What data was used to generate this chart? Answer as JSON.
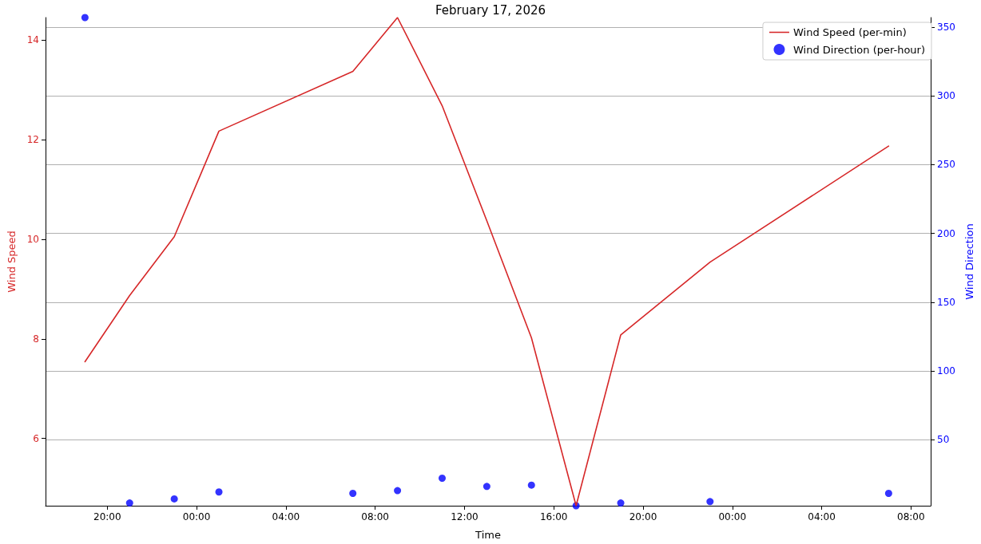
{
  "chart_data": {
    "type": "line",
    "title": "February 17, 2026",
    "xlabel": "Time",
    "ylabel": "Wind Speed",
    "y2label": "Wind Direction",
    "xlim": [
      "2026-02-16T17:14",
      "2026-02-18T08:53"
    ],
    "xticks": [
      {
        "value": "2026-02-16T20:00",
        "label": "20:00"
      },
      {
        "value": "2026-02-17T00:00",
        "label": "00:00"
      },
      {
        "value": "2026-02-17T04:00",
        "label": "04:00"
      },
      {
        "value": "2026-02-17T08:00",
        "label": "08:00"
      },
      {
        "value": "2026-02-17T12:00",
        "label": "12:00"
      },
      {
        "value": "2026-02-17T16:00",
        "label": "16:00"
      },
      {
        "value": "2026-02-17T20:00",
        "label": "20:00"
      },
      {
        "value": "2026-02-18T00:00",
        "label": "00:00"
      },
      {
        "value": "2026-02-18T04:00",
        "label": "04:00"
      },
      {
        "value": "2026-02-18T08:00",
        "label": "08:00"
      }
    ],
    "ylim": [
      4.65,
      14.45
    ],
    "yticks": [
      6,
      8,
      10,
      12,
      14
    ],
    "y2lim": [
      2,
      357
    ],
    "y2ticks": [
      50,
      100,
      150,
      200,
      250,
      300,
      350
    ],
    "x": [
      "2026-02-16T19:00",
      "2026-02-16T21:00",
      "2026-02-16T23:00",
      "2026-02-17T01:00",
      "2026-02-17T07:00",
      "2026-02-17T09:00",
      "2026-02-17T11:00",
      "2026-02-17T13:00",
      "2026-02-17T15:00",
      "2026-02-17T17:00",
      "2026-02-17T19:00",
      "2026-02-17T23:00",
      "2026-02-18T07:00"
    ],
    "series": [
      {
        "name": "Wind Speed (per-min)",
        "color": "#d62728",
        "marker": "none",
        "line_style": "solid",
        "values": [
          7.54,
          8.87,
          10.05,
          12.17,
          13.37,
          14.45,
          12.68,
          10.37,
          8.02,
          4.65,
          8.08,
          9.54,
          11.87
        ]
      },
      {
        "name": "Wind Direction (per-hour)",
        "type": "scatter",
        "axis": "y2",
        "color": "#0000ff",
        "marker": "circle",
        "values": [
          357,
          4,
          7,
          12,
          11,
          13,
          22,
          16,
          17,
          2,
          4,
          5,
          11
        ]
      }
    ],
    "grid": "y",
    "legend": "top right"
  }
}
